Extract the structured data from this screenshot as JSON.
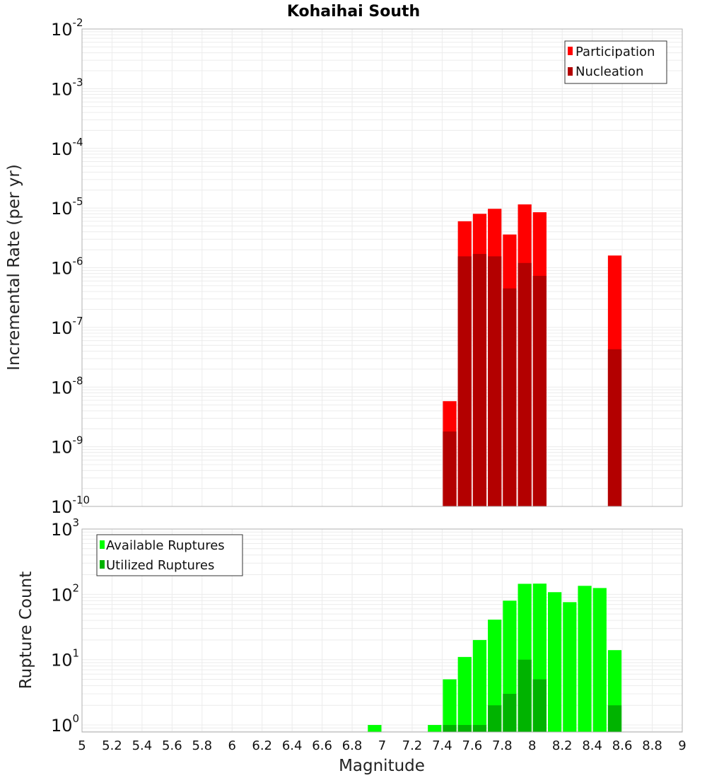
{
  "title": "Kohaihai South",
  "colors": {
    "participation": "#ff0000",
    "nucleation": "#b30000",
    "available": "#00ff00",
    "utilized": "#00b300",
    "grid": "#ececec",
    "frame": "#b0b0b0"
  },
  "chart_data": [
    {
      "type": "bar",
      "panel": "top",
      "ylabel": "Incremental Rate (per yr)",
      "xlabel": "",
      "yscale": "log",
      "ylim_exponents": [
        -10,
        -2
      ],
      "xlim": [
        5,
        9
      ],
      "bin_width": 0.1,
      "legend": [
        "Participation",
        "Nucleation"
      ],
      "legend_position": "top-right",
      "series": [
        {
          "name": "Participation",
          "x": [
            7.45,
            7.55,
            7.65,
            7.75,
            7.85,
            7.95,
            8.05,
            8.55
          ],
          "values": [
            5.8e-09,
            6e-06,
            8e-06,
            9.7e-06,
            3.6e-06,
            1.15e-05,
            8.5e-06,
            1.6e-06
          ]
        },
        {
          "name": "Nucleation",
          "x": [
            7.45,
            7.55,
            7.65,
            7.75,
            7.85,
            7.95,
            8.05,
            8.55
          ],
          "values": [
            1.8e-09,
            1.55e-06,
            1.7e-06,
            1.55e-06,
            4.5e-07,
            1.2e-06,
            7.3e-07,
            4.3e-08
          ]
        }
      ]
    },
    {
      "type": "bar",
      "panel": "bottom",
      "ylabel": "Rupture Count",
      "xlabel": "Magnitude",
      "yscale": "log",
      "ylim_exponents": [
        0,
        3
      ],
      "xlim": [
        5,
        9
      ],
      "bin_width": 0.1,
      "legend": [
        "Available Ruptures",
        "Utilized Ruptures"
      ],
      "legend_position": "top-left",
      "series": [
        {
          "name": "Available Ruptures",
          "x": [
            6.95,
            7.35,
            7.45,
            7.55,
            7.65,
            7.75,
            7.85,
            7.95,
            8.05,
            8.15,
            8.25,
            8.35,
            8.45,
            8.55
          ],
          "values": [
            1,
            1,
            5,
            11,
            20,
            41,
            80,
            145,
            146,
            108,
            76,
            135,
            125,
            14
          ]
        },
        {
          "name": "Utilized Ruptures",
          "x": [
            7.45,
            7.55,
            7.65,
            7.75,
            7.85,
            7.95,
            8.05,
            8.55
          ],
          "values": [
            1,
            1,
            1,
            2,
            3,
            10,
            5,
            2
          ]
        }
      ]
    }
  ],
  "xticks": [
    "5",
    "5.2",
    "5.4",
    "5.6",
    "5.8",
    "6",
    "6.2",
    "6.4",
    "6.6",
    "6.8",
    "7",
    "7.2",
    "7.4",
    "7.6",
    "7.8",
    "8",
    "8.2",
    "8.4",
    "8.6",
    "8.8",
    "9"
  ],
  "ytick_base": "10",
  "top_ytick_exps": [
    "-2",
    "-3",
    "-4",
    "-5",
    "-6",
    "-7",
    "-8",
    "-9",
    "-10"
  ],
  "bottom_ytick_exps": [
    "3",
    "2",
    "1",
    "0"
  ]
}
